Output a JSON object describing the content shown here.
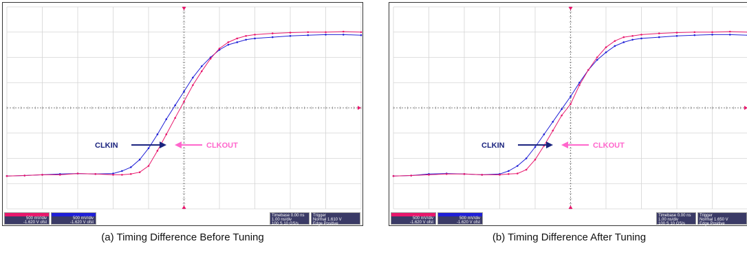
{
  "chart_data": [
    {
      "type": "line",
      "caption": "(a)  Timing Difference Before Tuning",
      "xlim": [
        -5,
        5
      ],
      "ylim": [
        -4,
        4
      ],
      "grid": true,
      "annotations": [
        {
          "text": "CLKIN",
          "color": "#1a237e"
        },
        {
          "text": "CLKOUT",
          "color": "#ff66cc"
        }
      ],
      "series": [
        {
          "name": "CLKIN",
          "color": "#1f1fd6",
          "x": [
            -5,
            -4.5,
            -4,
            -3.5,
            -3,
            -2.5,
            -2,
            -1.75,
            -1.5,
            -1.25,
            -1,
            -0.75,
            -0.5,
            -0.25,
            0,
            0.25,
            0.5,
            0.75,
            1,
            1.25,
            1.5,
            1.75,
            2,
            2.5,
            3,
            3.5,
            4,
            4.5,
            5
          ],
          "y": [
            -2.7,
            -2.68,
            -2.65,
            -2.62,
            -2.6,
            -2.62,
            -2.6,
            -2.5,
            -2.35,
            -2.05,
            -1.6,
            -1.05,
            -0.45,
            0.1,
            0.65,
            1.2,
            1.65,
            2.0,
            2.3,
            2.5,
            2.6,
            2.7,
            2.75,
            2.8,
            2.85,
            2.88,
            2.9,
            2.9,
            2.88
          ]
        },
        {
          "name": "CLKOUT",
          "color": "#e8176c",
          "x": [
            -5,
            -4.5,
            -4,
            -3.5,
            -3,
            -2.5,
            -2,
            -1.75,
            -1.5,
            -1.25,
            -1,
            -0.75,
            -0.5,
            -0.25,
            0,
            0.25,
            0.5,
            0.75,
            1,
            1.25,
            1.5,
            1.75,
            2,
            2.5,
            3,
            3.5,
            4,
            4.5,
            5
          ],
          "y": [
            -2.7,
            -2.68,
            -2.65,
            -2.65,
            -2.6,
            -2.62,
            -2.65,
            -2.65,
            -2.62,
            -2.55,
            -2.3,
            -1.7,
            -1.05,
            -0.4,
            0.25,
            0.9,
            1.45,
            1.95,
            2.35,
            2.6,
            2.75,
            2.85,
            2.9,
            2.95,
            2.98,
            3.0,
            3.0,
            3.02,
            3.0
          ]
        }
      ],
      "infobar": {
        "ch1": [
          "500 mV/div",
          "-1.620 V ofst"
        ],
        "ch2": [
          "500 mV/div",
          "-1.620 V ofst"
        ],
        "timebase": [
          "Timebase",
          "0.00 ns",
          "1.00 ns/div",
          "100 S",
          "10 GS/s"
        ],
        "trigger": [
          "Trigger",
          "Normal",
          "1.610 V",
          "Edge",
          "Positive"
        ]
      }
    },
    {
      "type": "line",
      "caption": "(b)  Timing Difference After Tuning",
      "xlim": [
        -5,
        5
      ],
      "ylim": [
        -4,
        4
      ],
      "grid": true,
      "annotations": [
        {
          "text": "CLKIN",
          "color": "#1a237e"
        },
        {
          "text": "CLKOUT",
          "color": "#ff66cc"
        }
      ],
      "series": [
        {
          "name": "CLKIN",
          "color": "#1f1fd6",
          "x": [
            -5,
            -4.5,
            -4,
            -3.5,
            -3,
            -2.5,
            -2,
            -1.75,
            -1.5,
            -1.25,
            -1,
            -0.75,
            -0.5,
            -0.25,
            0,
            0.25,
            0.5,
            0.75,
            1,
            1.25,
            1.5,
            1.75,
            2,
            2.5,
            3,
            3.5,
            4,
            4.5,
            5
          ],
          "y": [
            -2.7,
            -2.68,
            -2.62,
            -2.6,
            -2.62,
            -2.65,
            -2.62,
            -2.5,
            -2.3,
            -2.0,
            -1.55,
            -1.05,
            -0.55,
            -0.05,
            0.45,
            1.0,
            1.5,
            1.9,
            2.2,
            2.45,
            2.6,
            2.7,
            2.75,
            2.8,
            2.85,
            2.88,
            2.9,
            2.9,
            2.88
          ]
        },
        {
          "name": "CLKOUT",
          "color": "#e8176c",
          "x": [
            -5,
            -4.5,
            -4,
            -3.5,
            -3,
            -2.5,
            -2,
            -1.75,
            -1.5,
            -1.25,
            -1,
            -0.75,
            -0.5,
            -0.25,
            0,
            0.25,
            0.5,
            0.75,
            1,
            1.25,
            1.5,
            1.75,
            2,
            2.5,
            3,
            3.5,
            4,
            4.5,
            5
          ],
          "y": [
            -2.7,
            -2.68,
            -2.65,
            -2.62,
            -2.62,
            -2.65,
            -2.65,
            -2.62,
            -2.6,
            -2.45,
            -2.05,
            -1.5,
            -0.9,
            -0.3,
            0.15,
            0.9,
            1.5,
            2.0,
            2.4,
            2.65,
            2.8,
            2.85,
            2.9,
            2.95,
            2.98,
            3.0,
            3.0,
            3.02,
            3.0
          ]
        }
      ],
      "infobar": {
        "ch1": [
          "500 mV/div",
          "-1.620 V ofst"
        ],
        "ch2": [
          "500 mV/div",
          "-1.620 V ofst"
        ],
        "timebase": [
          "Timebase",
          "0.00 ns",
          "1.00 ns/div",
          "100 S",
          "10 GS/s"
        ],
        "trigger": [
          "Trigger",
          "Normal",
          "1.650 V",
          "Edge",
          "Positive"
        ]
      }
    }
  ]
}
